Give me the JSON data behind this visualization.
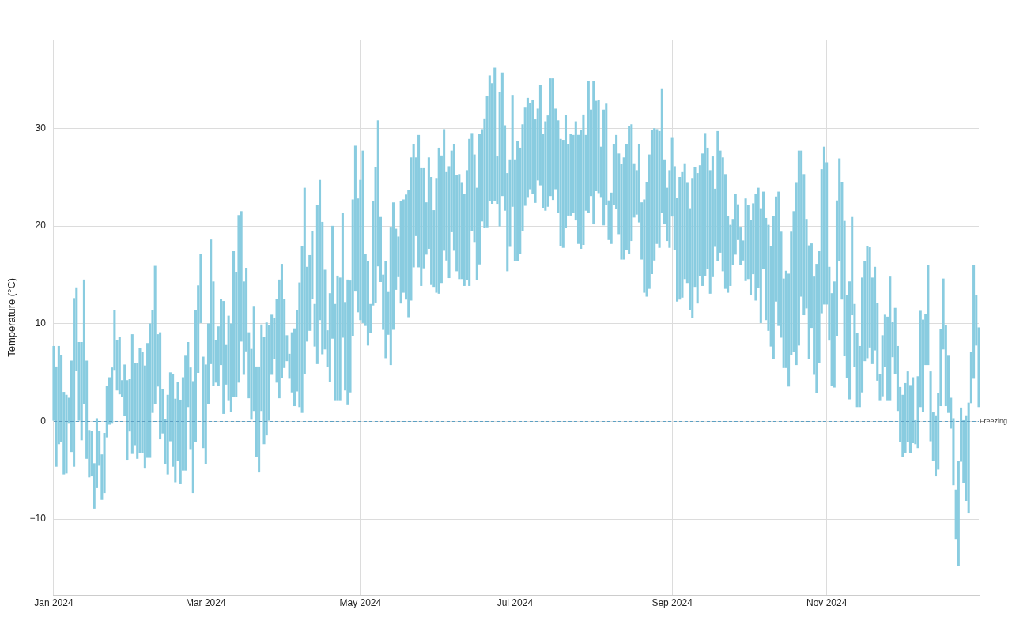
{
  "chart_data": {
    "type": "bar",
    "ylabel": "Temperature (°C)",
    "color": "#89cce0",
    "grid": true,
    "xlim": [
      "2024-01-01",
      "2024-12-31"
    ],
    "xticks": [
      {
        "value": "2024-01-01",
        "label": "Jan 2024"
      },
      {
        "value": "2024-03-01",
        "label": "Mar 2024"
      },
      {
        "value": "2024-05-01",
        "label": "May 2024"
      },
      {
        "value": "2024-07-01",
        "label": "Jul 2024"
      },
      {
        "value": "2024-09-01",
        "label": "Sep 2024"
      },
      {
        "value": "2024-11-01",
        "label": "Nov 2024"
      }
    ],
    "ylim": [
      -17.8,
      39.1
    ],
    "yticks": [
      {
        "value": -10,
        "label": "−10"
      },
      0,
      10,
      20,
      30
    ],
    "ref_lines": [
      {
        "axis": "y",
        "value": 0,
        "label": "Freezing",
        "color": "#5b9fc2",
        "line_style": "dashed"
      }
    ],
    "x": [
      "2024-01-01",
      "2024-01-02",
      "2024-01-03",
      "2024-01-04",
      "2024-01-05",
      "2024-01-06",
      "2024-01-07",
      "2024-01-08",
      "2024-01-09",
      "2024-01-10",
      "2024-01-11",
      "2024-01-12",
      "2024-01-13",
      "2024-01-14",
      "2024-01-15",
      "2024-01-16",
      "2024-01-17",
      "2024-01-18",
      "2024-01-19",
      "2024-01-20",
      "2024-01-21",
      "2024-01-22",
      "2024-01-23",
      "2024-01-24",
      "2024-01-25",
      "2024-01-26",
      "2024-01-27",
      "2024-01-28",
      "2024-01-29",
      "2024-01-30",
      "2024-01-31",
      "2024-02-01",
      "2024-02-02",
      "2024-02-03",
      "2024-02-04",
      "2024-02-05",
      "2024-02-06",
      "2024-02-07",
      "2024-02-08",
      "2024-02-09",
      "2024-02-10",
      "2024-02-11",
      "2024-02-12",
      "2024-02-13",
      "2024-02-14",
      "2024-02-15",
      "2024-02-16",
      "2024-02-17",
      "2024-02-18",
      "2024-02-19",
      "2024-02-20",
      "2024-02-21",
      "2024-02-22",
      "2024-02-23",
      "2024-02-24",
      "2024-02-25",
      "2024-02-26",
      "2024-02-27",
      "2024-02-28",
      "2024-02-29",
      "2024-03-01",
      "2024-03-02",
      "2024-03-03",
      "2024-03-04",
      "2024-03-05",
      "2024-03-06",
      "2024-03-07",
      "2024-03-08",
      "2024-03-09",
      "2024-03-10",
      "2024-03-11",
      "2024-03-12",
      "2024-03-13",
      "2024-03-14",
      "2024-03-15",
      "2024-03-16",
      "2024-03-17",
      "2024-03-18",
      "2024-03-19",
      "2024-03-20",
      "2024-03-21",
      "2024-03-22",
      "2024-03-23",
      "2024-03-24",
      "2024-03-25",
      "2024-03-26",
      "2024-03-27",
      "2024-03-28",
      "2024-03-29",
      "2024-03-30",
      "2024-03-31",
      "2024-04-01",
      "2024-04-02",
      "2024-04-03",
      "2024-04-04",
      "2024-04-05",
      "2024-04-06",
      "2024-04-07",
      "2024-04-08",
      "2024-04-09",
      "2024-04-10",
      "2024-04-11",
      "2024-04-12",
      "2024-04-13",
      "2024-04-14",
      "2024-04-15",
      "2024-04-16",
      "2024-04-17",
      "2024-04-18",
      "2024-04-19",
      "2024-04-20",
      "2024-04-21",
      "2024-04-22",
      "2024-04-23",
      "2024-04-24",
      "2024-04-25",
      "2024-04-26",
      "2024-04-27",
      "2024-04-28",
      "2024-04-29",
      "2024-04-30",
      "2024-05-01",
      "2024-05-02",
      "2024-05-03",
      "2024-05-04",
      "2024-05-05",
      "2024-05-06",
      "2024-05-07",
      "2024-05-08",
      "2024-05-09",
      "2024-05-10",
      "2024-05-11",
      "2024-05-12",
      "2024-05-13",
      "2024-05-14",
      "2024-05-15",
      "2024-05-16",
      "2024-05-17",
      "2024-05-18",
      "2024-05-19",
      "2024-05-20",
      "2024-05-21",
      "2024-05-22",
      "2024-05-23",
      "2024-05-24",
      "2024-05-25",
      "2024-05-26",
      "2024-05-27",
      "2024-05-28",
      "2024-05-29",
      "2024-05-30",
      "2024-05-31",
      "2024-06-01",
      "2024-06-02",
      "2024-06-03",
      "2024-06-04",
      "2024-06-05",
      "2024-06-06",
      "2024-06-07",
      "2024-06-08",
      "2024-06-09",
      "2024-06-10",
      "2024-06-11",
      "2024-06-12",
      "2024-06-13",
      "2024-06-14",
      "2024-06-15",
      "2024-06-16",
      "2024-06-17",
      "2024-06-18",
      "2024-06-19",
      "2024-06-20",
      "2024-06-21",
      "2024-06-22",
      "2024-06-23",
      "2024-06-24",
      "2024-06-25",
      "2024-06-26",
      "2024-06-27",
      "2024-06-28",
      "2024-06-29",
      "2024-06-30",
      "2024-07-01",
      "2024-07-02",
      "2024-07-03",
      "2024-07-04",
      "2024-07-05",
      "2024-07-06",
      "2024-07-07",
      "2024-07-08",
      "2024-07-09",
      "2024-07-10",
      "2024-07-11",
      "2024-07-12",
      "2024-07-13",
      "2024-07-14",
      "2024-07-15",
      "2024-07-16",
      "2024-07-17",
      "2024-07-18",
      "2024-07-19",
      "2024-07-20",
      "2024-07-21",
      "2024-07-22",
      "2024-07-23",
      "2024-07-24",
      "2024-07-25",
      "2024-07-26",
      "2024-07-27",
      "2024-07-28",
      "2024-07-29",
      "2024-07-30",
      "2024-07-31",
      "2024-08-01",
      "2024-08-02",
      "2024-08-03",
      "2024-08-04",
      "2024-08-05",
      "2024-08-06",
      "2024-08-07",
      "2024-08-08",
      "2024-08-09",
      "2024-08-10",
      "2024-08-11",
      "2024-08-12",
      "2024-08-13",
      "2024-08-14",
      "2024-08-15",
      "2024-08-16",
      "2024-08-17",
      "2024-08-18",
      "2024-08-19",
      "2024-08-20",
      "2024-08-21",
      "2024-08-22",
      "2024-08-23",
      "2024-08-24",
      "2024-08-25",
      "2024-08-26",
      "2024-08-27",
      "2024-08-28",
      "2024-08-29",
      "2024-08-30",
      "2024-08-31",
      "2024-09-01",
      "2024-09-02",
      "2024-09-03",
      "2024-09-04",
      "2024-09-05",
      "2024-09-06",
      "2024-09-07",
      "2024-09-08",
      "2024-09-09",
      "2024-09-10",
      "2024-09-11",
      "2024-09-12",
      "2024-09-13",
      "2024-09-14",
      "2024-09-15",
      "2024-09-16",
      "2024-09-17",
      "2024-09-18",
      "2024-09-19",
      "2024-09-20",
      "2024-09-21",
      "2024-09-22",
      "2024-09-23",
      "2024-09-24",
      "2024-09-25",
      "2024-09-26",
      "2024-09-27",
      "2024-09-28",
      "2024-09-29",
      "2024-09-30",
      "2024-10-01",
      "2024-10-02",
      "2024-10-03",
      "2024-10-04",
      "2024-10-05",
      "2024-10-06",
      "2024-10-07",
      "2024-10-08",
      "2024-10-09",
      "2024-10-10",
      "2024-10-11",
      "2024-10-12",
      "2024-10-13",
      "2024-10-14",
      "2024-10-15",
      "2024-10-16",
      "2024-10-17",
      "2024-10-18",
      "2024-10-19",
      "2024-10-20",
      "2024-10-21",
      "2024-10-22",
      "2024-10-23",
      "2024-10-24",
      "2024-10-25",
      "2024-10-26",
      "2024-10-27",
      "2024-10-28",
      "2024-10-29",
      "2024-10-30",
      "2024-10-31",
      "2024-11-01",
      "2024-11-02",
      "2024-11-03",
      "2024-11-04",
      "2024-11-05",
      "2024-11-06",
      "2024-11-07",
      "2024-11-08",
      "2024-11-09",
      "2024-11-10",
      "2024-11-11",
      "2024-11-12",
      "2024-11-13",
      "2024-11-14",
      "2024-11-15",
      "2024-11-16",
      "2024-11-17",
      "2024-11-18",
      "2024-11-19",
      "2024-11-20",
      "2024-11-21",
      "2024-11-22",
      "2024-11-23",
      "2024-11-24",
      "2024-11-25",
      "2024-11-26",
      "2024-11-27",
      "2024-11-28",
      "2024-11-29",
      "2024-11-30",
      "2024-12-01",
      "2024-12-02",
      "2024-12-03",
      "2024-12-04",
      "2024-12-05",
      "2024-12-06",
      "2024-12-07",
      "2024-12-08",
      "2024-12-09",
      "2024-12-10",
      "2024-12-11",
      "2024-12-12",
      "2024-12-13",
      "2024-12-14",
      "2024-12-15",
      "2024-12-16",
      "2024-12-17",
      "2024-12-18",
      "2024-12-19",
      "2024-12-20",
      "2024-12-21",
      "2024-12-22",
      "2024-12-23",
      "2024-12-24",
      "2024-12-25",
      "2024-12-26",
      "2024-12-27",
      "2024-12-28",
      "2024-12-29",
      "2024-12-30",
      "2024-12-31"
    ],
    "base": [
      0.1,
      -4.6,
      -2.3,
      -2.1,
      -5.4,
      -5.3,
      -0.2,
      -3.1,
      -4.6,
      5.2,
      0.1,
      -1.9,
      1.8,
      -3.8,
      -5.7,
      -5.6,
      -8.9,
      -6.8,
      -4.5,
      -8.0,
      -7.3,
      -1.6,
      -0.3,
      -0.2,
      5.3,
      3.2,
      2.8,
      2.5,
      0.6,
      -3.9,
      -1.0,
      -3.3,
      -2.4,
      -3.8,
      -3.2,
      -3.2,
      -4.8,
      -3.7,
      -3.7,
      0.9,
      1.8,
      3.6,
      -1.8,
      -1.2,
      -4.3,
      -5.4,
      -2.0,
      -4.6,
      -6.2,
      -4.0,
      -6.4,
      -5.0,
      -5.0,
      1.5,
      -2.8,
      -7.3,
      -2.1,
      5.0,
      10.1,
      -2.7,
      -4.3,
      1.8,
      5.9,
      3.7,
      4.0,
      3.7,
      5.8,
      0.8,
      3.8,
      2.2,
      1.0,
      2.5,
      2.5,
      4.0,
      8.2,
      4.8,
      7.2,
      2.4,
      0.2,
      1.1,
      -3.6,
      -5.2,
      1.1,
      -2.3,
      -1.4,
      0.1,
      4.8,
      6.4,
      4.0,
      2.4,
      4.5,
      5.5,
      6.2,
      4.4,
      3.0,
      1.6,
      3.1,
      1.5,
      0.9,
      4.9,
      8.2,
      9.3,
      12.6,
      7.7,
      5.9,
      10.4,
      6.9,
      7.4,
      5.6,
      4.1,
      8.5,
      2.2,
      2.2,
      2.2,
      8.6,
      3.2,
      1.7,
      3.0,
      8.8,
      13.4,
      11.2,
      10.4,
      10.1,
      9.8,
      7.8,
      9.1,
      11.9,
      12.2,
      15.9,
      14.3,
      9.4,
      6.5,
      8.9,
      5.8,
      9.4,
      13.5,
      14.8,
      12.1,
      13.2,
      12.5,
      10.7,
      12.4,
      15.8,
      19.0,
      15.8,
      13.9,
      15.7,
      17.1,
      17.7,
      14.0,
      13.8,
      13.2,
      13.1,
      14.2,
      17.5,
      16.5,
      14.7,
      19.4,
      17.5,
      15.4,
      14.6,
      14.6,
      13.9,
      14.5,
      13.9,
      19.5,
      18.4,
      14.5,
      16.1,
      20.5,
      19.8,
      19.9,
      22.6,
      22.3,
      22.6,
      22.3,
      20.0,
      23.1,
      21.6,
      15.4,
      17.9,
      22.0,
      16.4,
      16.4,
      17.2,
      19.5,
      22.1,
      23.0,
      23.8,
      23.3,
      22.4,
      24.7,
      24.2,
      21.9,
      21.6,
      22.0,
      23.1,
      22.7,
      23.8,
      21.4,
      18.0,
      17.8,
      19.8,
      21.1,
      21.1,
      21.4,
      20.6,
      18.2,
      17.7,
      18.1,
      21.6,
      21.4,
      23.1,
      20.2,
      23.6,
      23.4,
      23.0,
      20.1,
      22.2,
      18.6,
      18.2,
      22.2,
      21.8,
      19.2,
      16.6,
      16.6,
      17.6,
      17.2,
      18.5,
      20.9,
      21.2,
      20.4,
      16.6,
      13.2,
      12.8,
      13.6,
      15.1,
      16.5,
      18.2,
      17.8,
      21.4,
      20.2,
      18.5,
      17.8,
      21.0,
      17.6,
      12.3,
      12.5,
      12.7,
      14.6,
      14.2,
      11.4,
      10.6,
      13.8,
      12.1,
      14.9,
      13.9,
      14.9,
      15.6,
      13.1,
      14.8,
      17.9,
      16.4,
      17.3,
      15.4,
      13.6,
      13.2,
      13.9,
      16.0,
      17.1,
      18.6,
      16.0,
      16.5,
      14.4,
      14.6,
      13.0,
      15.1,
      12.4,
      13.7,
      10.1,
      15.6,
      10.4,
      9.3,
      7.7,
      6.4,
      12.3,
      9.8,
      8.6,
      5.5,
      5.5,
      3.6,
      6.8,
      7.1,
      5.8,
      7.8,
      12.8,
      10.9,
      11.6,
      6.4,
      9.6,
      4.8,
      2.9,
      6.0,
      11.1,
      12.0,
      12.0,
      8.3,
      3.7,
      3.5,
      8.8,
      16.4,
      12.5,
      6.7,
      4.5,
      2.3,
      10.9,
      5.6,
      1.5,
      1.5,
      3.0,
      6.2,
      6.5,
      7.6,
      5.9,
      7.3,
      4.2,
      2.2,
      2.6,
      5.6,
      2.2,
      2.2,
      6.6,
      4.9,
      1.1,
      -2.1,
      -3.6,
      -3.2,
      -2.1,
      -3.2,
      -2.2,
      -2.3,
      -2.7,
      1.5,
      1.0,
      5.8,
      5.8,
      -2.0,
      -4.0,
      -5.6,
      -4.9,
      1.6,
      7.4,
      1.6,
      0.9,
      -0.7,
      -6.5,
      -12.0,
      -14.8,
      -4.1,
      -6.3,
      -8.1,
      -9.4,
      1.9,
      4.4,
      7.8,
      1.5
    ],
    "values": [
      7.6,
      10.2,
      10.0,
      8.9,
      8.4,
      8.0,
      2.6,
      9.3,
      17.2,
      8.5,
      8.0,
      10.0,
      12.7,
      10.0,
      4.8,
      4.6,
      4.6,
      7.1,
      3.5,
      4.6,
      6.1,
      5.2,
      4.8,
      5.7,
      6.1,
      5.1,
      5.8,
      1.7,
      5.2,
      8.1,
      5.3,
      12.2,
      8.4,
      9.8,
      10.7,
      10.3,
      10.5,
      11.7,
      13.7,
      10.5,
      14.1,
      5.3,
      10.9,
      4.5,
      4.5,
      8.1,
      7.0,
      9.4,
      8.5,
      8.0,
      8.6,
      9.5,
      11.7,
      6.6,
      8.3,
      11.4,
      13.5,
      8.9,
      7.0,
      9.3,
      10.1,
      8.2,
      12.7,
      10.6,
      4.3,
      6.0,
      6.7,
      11.5,
      4.0,
      8.6,
      9.0,
      14.9,
      12.8,
      17.1,
      13.3,
      9.5,
      8.5,
      6.7,
      7.2,
      10.7,
      9.2,
      10.8,
      8.8,
      10.9,
      11.5,
      9.7,
      6.1,
      4.2,
      8.5,
      12.1,
      11.6,
      7.0,
      2.6,
      2.5,
      6.1,
      7.9,
      8.3,
      12.7,
      17.0,
      19.0,
      7.6,
      7.7,
      6.9,
      4.3,
      16.2,
      14.3,
      13.5,
      8.1,
      3.7,
      9.0,
      11.5,
      9.8,
      12.7,
      12.5,
      12.7,
      9.0,
      12.8,
      11.4,
      13.9,
      14.8,
      11.6,
      14.3,
      17.6,
      7.3,
      8.6,
      2.9,
      10.6,
      13.8,
      14.9,
      6.6,
      5.6,
      9.9,
      4.4,
      14.1,
      13.0,
      6.2,
      4.1,
      10.4,
      9.5,
      10.7,
      13.0,
      14.6,
      12.6,
      8.0,
      13.5,
      12.0,
      10.2,
      5.3,
      9.3,
      11.0,
      7.8,
      11.7,
      14.9,
      13.0,
      12.4,
      9.0,
      11.4,
      8.3,
      10.9,
      9.8,
      10.7,
      9.8,
      9.4,
      11.2,
      15.0,
      10.0,
      8.9,
      9.4,
      13.3,
      9.4,
      11.2,
      13.4,
      12.8,
      12.3,
      13.6,
      4.8,
      13.7,
      12.6,
      8.7,
      10.0,
      8.9,
      11.4,
      10.4,
      12.3,
      10.8,
      10.9,
      10.0,
      10.1,
      8.8,
      9.6,
      8.5,
      7.3,
      10.2,
      7.5,
      9.1,
      9.3,
      12.0,
      12.4,
      8.2,
      9.4,
      10.9,
      11.0,
      11.6,
      7.3,
      8.3,
      7.9,
      10.1,
      11.1,
      12.1,
      13.3,
      7.7,
      13.4,
      8.8,
      14.6,
      9.2,
      9.5,
      5.1,
      11.8,
      10.3,
      4.0,
      5.2,
      6.2,
      7.5,
      8.2,
      9.7,
      10.4,
      10.8,
      13.0,
      11.9,
      5.5,
      4.5,
      8.0,
      5.8,
      9.5,
      11.7,
      13.7,
      14.7,
      13.5,
      11.7,
      11.9,
      12.6,
      6.6,
      5.4,
      7.9,
      8.0,
      8.5,
      10.6,
      12.5,
      12.8,
      11.8,
      10.2,
      10.4,
      14.3,
      12.2,
      13.3,
      11.3,
      13.5,
      14.6,
      12.4,
      12.6,
      12.3,
      5.9,
      13.3,
      10.4,
      11.6,
      11.7,
      7.8,
      6.2,
      4.7,
      6.2,
      3.6,
      3.9,
      2.0,
      8.4,
      7.5,
      7.6,
      7.2,
      10.9,
      10.2,
      11.7,
      7.9,
      10.4,
      10.8,
      10.2,
      14.6,
      10.7,
      13.7,
      10.8,
      9.1,
      9.9,
      11.5,
      12.6,
      14.4,
      18.6,
      19.9,
      14.9,
      14.4,
      9.1,
      11.6,
      8.6,
      10.0,
      13.2,
      11.4,
      14.7,
      16.1,
      14.5,
      7.5,
      9.4,
      10.8,
      13.8,
      10.5,
      12.0,
      13.8,
      8.4,
      12.0,
      10.0,
      6.4,
      7.5,
      6.2,
      11.7,
      10.2,
      11.4,
      10.2,
      8.8,
      8.5,
      7.9,
      2.6,
      6.2,
      5.3,
      8.5,
      12.6,
      3.6,
      6.7,
      6.6,
      5.6,
      6.3,
      7.1,
      7.2,
      6.9,
      6.7,
      2.4,
      7.3,
      9.8,
      9.4,
      5.2,
      10.2,
      7.1,
      4.9,
      6.2,
      7.8,
      7.8,
      7.2,
      8.2,
      5.8,
      3.1,
      6.8,
      5.0,
      10.7,
      5.5,
      6.4,
      8.7,
      11.3,
      5.2,
      11.6,
      5.1,
      8.1
    ]
  }
}
